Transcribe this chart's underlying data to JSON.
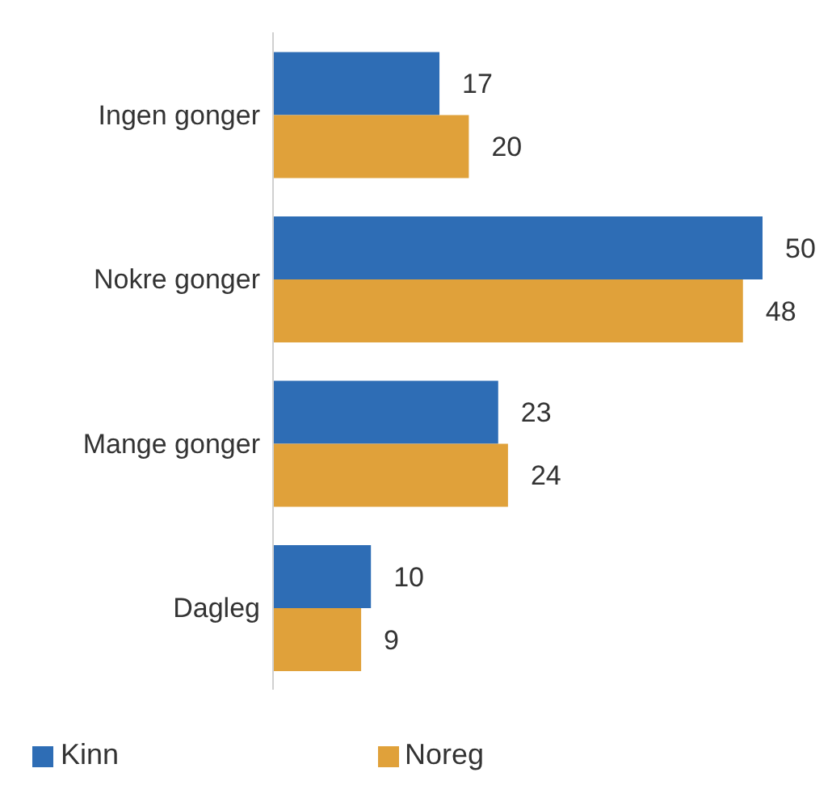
{
  "chart_data": {
    "type": "bar",
    "orientation": "horizontal",
    "categories": [
      "Ingen gonger",
      "Nokre gonger",
      "Mange gonger",
      "Dagleg"
    ],
    "series": [
      {
        "name": "Kinn",
        "color": "#2e6db5",
        "values": [
          17,
          50,
          23,
          10
        ]
      },
      {
        "name": "Noreg",
        "color": "#e0a13a",
        "values": [
          20,
          48,
          24,
          9
        ]
      }
    ],
    "data_labels": true,
    "legend": "bottom"
  }
}
